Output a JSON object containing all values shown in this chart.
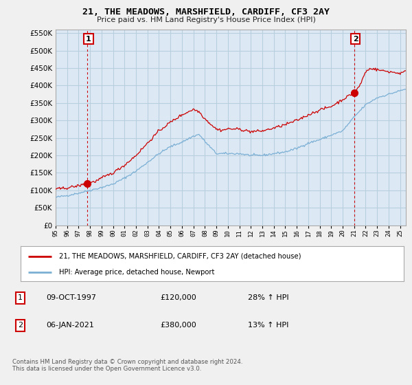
{
  "title": "21, THE MEADOWS, MARSHFIELD, CARDIFF, CF3 2AY",
  "subtitle": "Price paid vs. HM Land Registry's House Price Index (HPI)",
  "legend_line1": "21, THE MEADOWS, MARSHFIELD, CARDIFF, CF3 2AY (detached house)",
  "legend_line2": "HPI: Average price, detached house, Newport",
  "annotation1_label": "1",
  "annotation1_date": "09-OCT-1997",
  "annotation1_price": "£120,000",
  "annotation1_hpi": "28% ↑ HPI",
  "annotation2_label": "2",
  "annotation2_date": "06-JAN-2021",
  "annotation2_price": "£380,000",
  "annotation2_hpi": "13% ↑ HPI",
  "footer": "Contains HM Land Registry data © Crown copyright and database right 2024.\nThis data is licensed under the Open Government Licence v3.0.",
  "ylim": [
    0,
    560000
  ],
  "yticks": [
    0,
    50000,
    100000,
    150000,
    200000,
    250000,
    300000,
    350000,
    400000,
    450000,
    500000,
    550000
  ],
  "red_line_color": "#cc0000",
  "blue_line_color": "#7bafd4",
  "background_color": "#f0f0f0",
  "plot_bg_color": "#dce9f5",
  "grid_color": "#b8cfe0",
  "sale1_x": 1997.77,
  "sale1_y": 120000,
  "sale2_x": 2021.02,
  "sale2_y": 380000,
  "xlim_start": 1995.0,
  "xlim_end": 2025.5
}
